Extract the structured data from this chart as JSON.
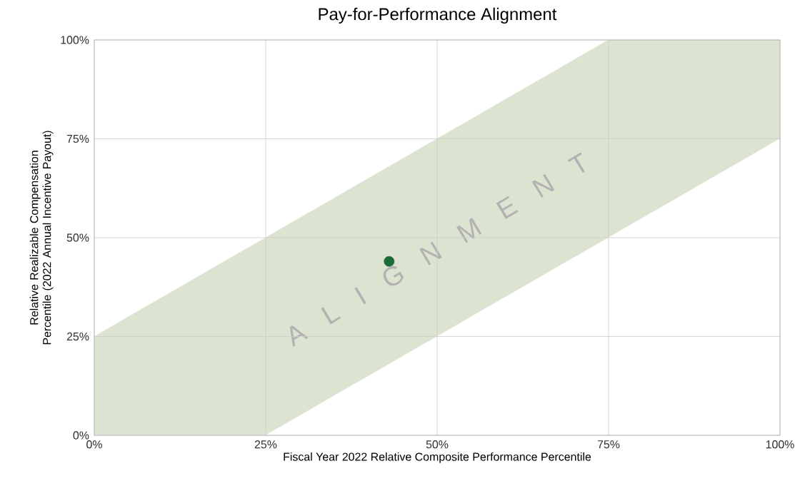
{
  "chart_data": {
    "type": "scatter",
    "title": "Pay-for-Performance Alignment",
    "xlabel": "Fiscal Year 2022 Relative Composite Performance Percentile",
    "ylabel": "Relative Realizable Compensation Percentile (2022 Annual Incentive Payout)",
    "x": [
      43
    ],
    "grid": true,
    "xlim": [
      0,
      100
    ],
    "ylim": [
      0,
      100
    ],
    "xticks": [
      {
        "value": 0,
        "label": "0%"
      },
      {
        "value": 25,
        "label": "25%"
      },
      {
        "value": 50,
        "label": "50%"
      },
      {
        "value": 75,
        "label": "75%"
      },
      {
        "value": 100,
        "label": "100%"
      }
    ],
    "yticks": [
      {
        "value": 0,
        "label": "0%"
      },
      {
        "value": 25,
        "label": "25%"
      },
      {
        "value": 50,
        "label": "50%"
      },
      {
        "value": 75,
        "label": "75%"
      },
      {
        "value": 100,
        "label": "100%"
      }
    ],
    "annotations": [
      "A L I G N M E N T"
    ],
    "series": [
      {
        "type": "area",
        "color": "#dde3d1",
        "x": [
          0,
          25,
          75,
          100
        ],
        "values": [
          25,
          50,
          100,
          100
        ]
      },
      {
        "type": "area",
        "color": "#ffffff",
        "x": [
          0,
          25,
          75,
          100
        ],
        "values": [
          0,
          0,
          50,
          75
        ]
      },
      {
        "color": "#1e6b3a",
        "values": [
          44
        ]
      }
    ]
  }
}
